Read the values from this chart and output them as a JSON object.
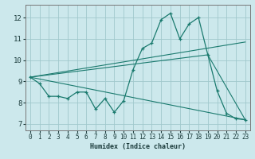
{
  "title": "",
  "xlabel": "Humidex (Indice chaleur)",
  "ylabel": "",
  "bg_color": "#cce8ec",
  "grid_color": "#a0c8cc",
  "line_color": "#1a7a6e",
  "xlim": [
    -0.5,
    23.5
  ],
  "ylim": [
    6.7,
    12.6
  ],
  "yticks": [
    7,
    8,
    9,
    10,
    11,
    12
  ],
  "xticks": [
    0,
    1,
    2,
    3,
    4,
    5,
    6,
    7,
    8,
    9,
    10,
    11,
    12,
    13,
    14,
    15,
    16,
    17,
    18,
    19,
    20,
    21,
    22,
    23
  ],
  "line1_x": [
    0,
    1,
    2,
    3,
    4,
    5,
    6,
    7,
    8,
    9,
    10,
    11,
    12,
    13,
    14,
    15,
    16,
    17,
    18,
    19,
    20,
    21,
    22,
    23
  ],
  "line1_y": [
    9.2,
    8.9,
    8.3,
    8.3,
    8.2,
    8.5,
    8.5,
    7.7,
    8.2,
    7.55,
    8.1,
    9.55,
    10.55,
    10.8,
    11.9,
    12.2,
    11.0,
    11.7,
    12.0,
    10.25,
    8.55,
    7.5,
    7.25,
    7.2
  ],
  "line2_x": [
    0,
    23
  ],
  "line2_y": [
    9.2,
    7.2
  ],
  "line3_x": [
    0,
    23
  ],
  "line3_y": [
    9.2,
    10.85
  ],
  "line4_x": [
    0,
    19,
    23
  ],
  "line4_y": [
    9.2,
    10.25,
    7.2
  ]
}
